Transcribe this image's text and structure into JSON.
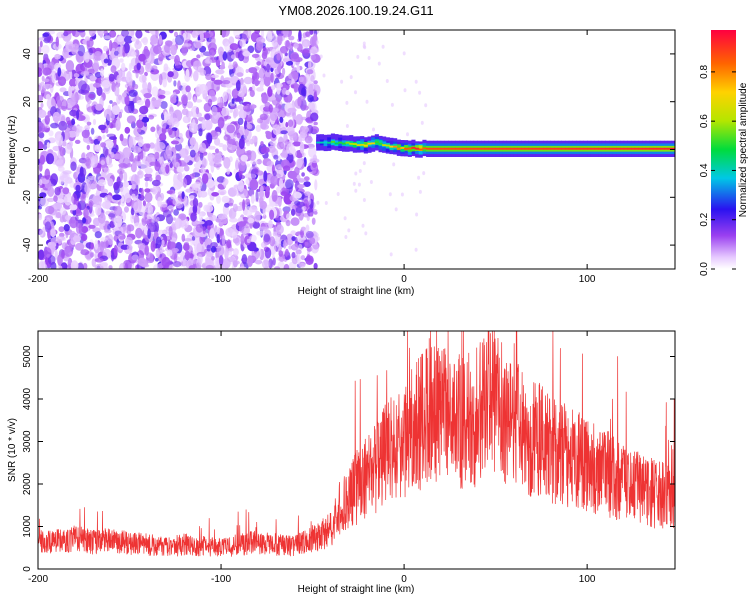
{
  "figure": {
    "title": "YM08.2026.100.19.24.G11"
  },
  "chart_data": [
    {
      "type": "heatmap",
      "xlabel": "Height of straight line (km)",
      "ylabel": "Frequency (Hz)",
      "xlim": [
        -200,
        148
      ],
      "ylim": [
        -50,
        50
      ],
      "xticks": [
        -200,
        -100,
        0,
        100
      ],
      "yticks": [
        -40,
        -20,
        0,
        20,
        40
      ],
      "grid": false,
      "noise_region": {
        "x": [
          -200,
          -48
        ],
        "y": [
          -50,
          50
        ],
        "level": 0.12
      },
      "ridge": [
        {
          "x": -48,
          "y": 2.6,
          "level": 0.35
        },
        {
          "x": -40,
          "y": 3.0,
          "level": 0.45
        },
        {
          "x": -30,
          "y": 2.5,
          "level": 0.6
        },
        {
          "x": -20,
          "y": 1.8,
          "level": 0.75
        },
        {
          "x": -15,
          "y": 3.2,
          "level": 0.55
        },
        {
          "x": -10,
          "y": 1.5,
          "level": 0.6
        },
        {
          "x": 0,
          "y": 0.4,
          "level": 0.8
        },
        {
          "x": 10,
          "y": 0.3,
          "level": 0.9
        },
        {
          "x": 148,
          "y": 0.3,
          "level": 0.95
        }
      ],
      "colorbar": {
        "label": "Normalized spectral amplitude",
        "ticks": [
          0.0,
          0.2,
          0.4,
          0.6,
          0.8
        ],
        "range": [
          0,
          0.97
        ]
      }
    },
    {
      "type": "line",
      "xlabel": "Height of straight line (km)",
      "ylabel": "SNR (10 * v/v)",
      "xlim": [
        -200,
        148
      ],
      "ylim": [
        0,
        5600
      ],
      "xticks": [
        -200,
        -100,
        0,
        100
      ],
      "yticks": [
        0,
        1000,
        2000,
        3000,
        4000,
        5000
      ],
      "color": "#ee3333",
      "grid": false,
      "series": [
        {
          "x": [
            -200,
            -190,
            -180,
            -170,
            -160,
            -150,
            -140,
            -130,
            -120,
            -110,
            -100,
            -90,
            -80,
            -70,
            -60,
            -50,
            -40,
            -35,
            -30,
            -20,
            -10,
            0,
            10,
            15,
            20,
            30,
            40,
            47,
            50,
            60,
            70,
            80,
            90,
            100,
            110,
            120,
            130,
            140,
            148
          ],
          "values": [
            600,
            650,
            700,
            620,
            650,
            600,
            560,
            500,
            560,
            520,
            480,
            560,
            620,
            560,
            520,
            700,
            900,
            1400,
            1700,
            2100,
            2600,
            3000,
            3400,
            3700,
            3500,
            3400,
            3500,
            4300,
            3700,
            3300,
            3000,
            2800,
            2600,
            2400,
            2200,
            2000,
            1800,
            1700,
            1650
          ]
        }
      ]
    }
  ]
}
